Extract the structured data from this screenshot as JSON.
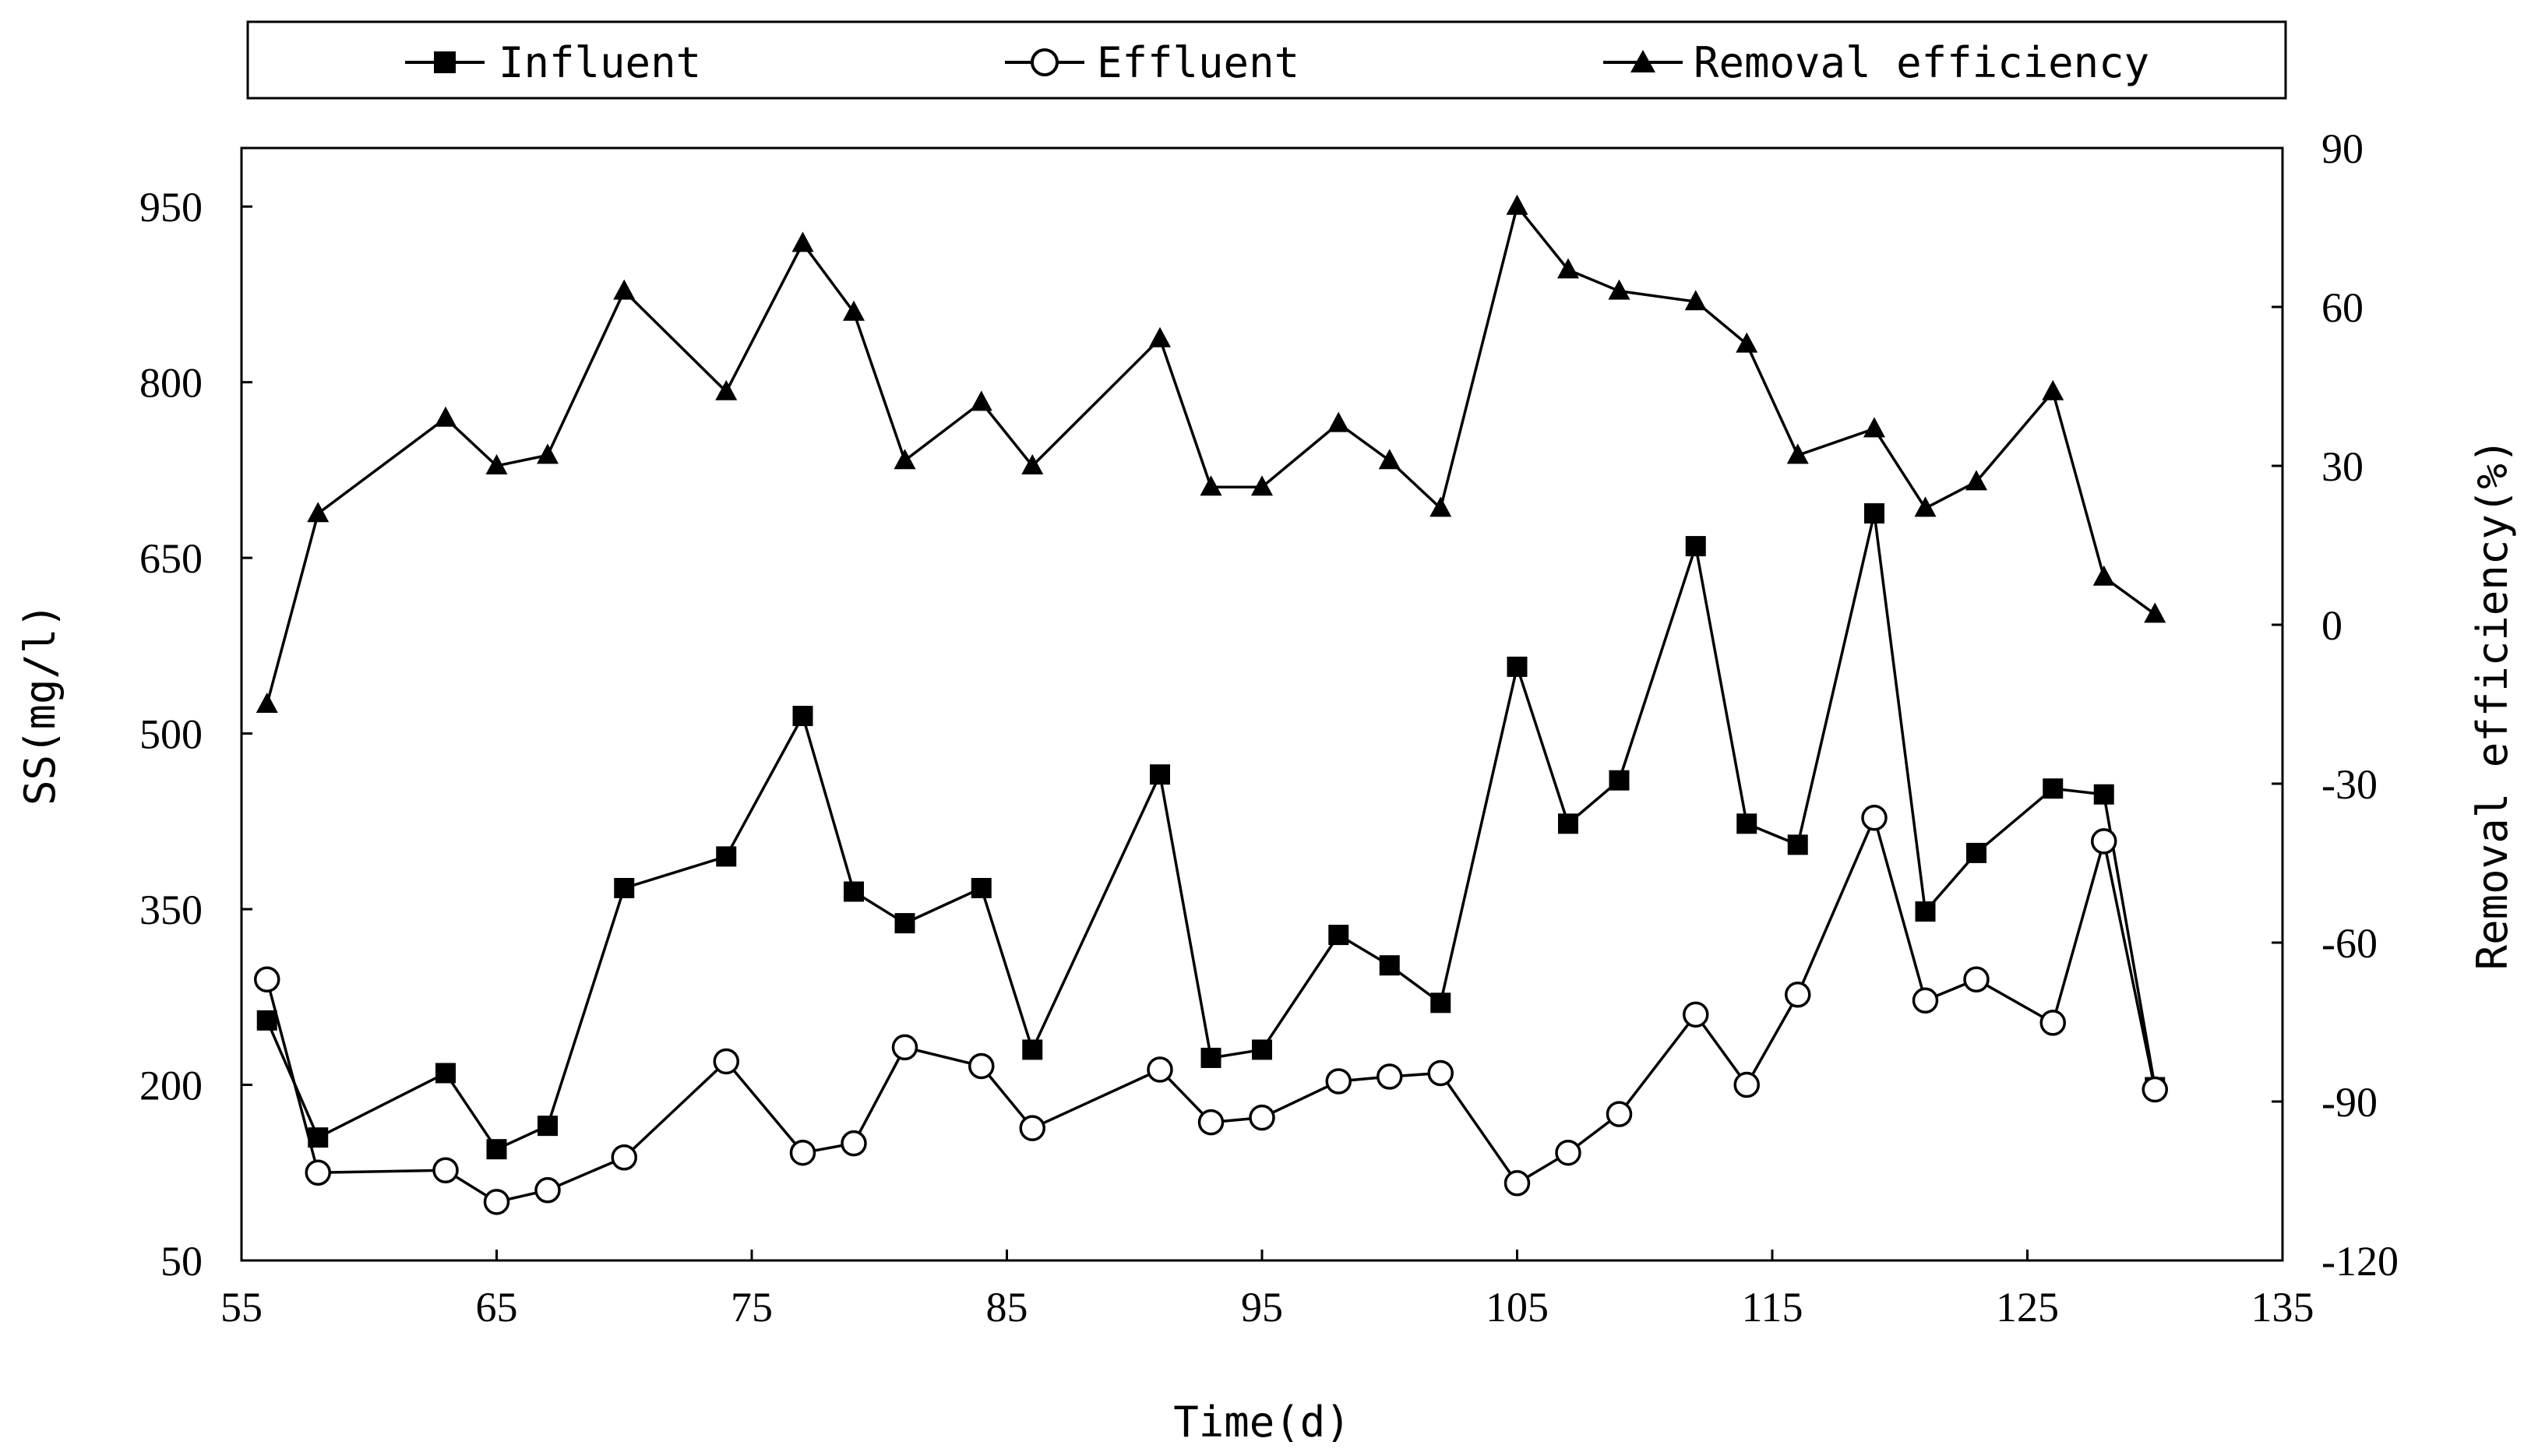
{
  "chart_data": {
    "type": "line",
    "title": "",
    "xlabel": "Time(d)",
    "ylabel": "SS(mg/l)",
    "y2label": "Removal efficiency(%)",
    "xlim": [
      55,
      135
    ],
    "ylim": [
      50,
      1000
    ],
    "y2lim": [
      -120,
      90
    ],
    "xticks": [
      55,
      65,
      75,
      85,
      95,
      105,
      115,
      125,
      135
    ],
    "yticks": [
      50,
      200,
      350,
      500,
      650,
      800,
      950
    ],
    "y2ticks": [
      -120,
      -90,
      -60,
      -30,
      0,
      30,
      60,
      90
    ],
    "grid": false,
    "legend_position": "top, outside plot area",
    "series": [
      {
        "name": "Influent",
        "axis": "left",
        "marker": "filled-square",
        "x": [
          56,
          58,
          63,
          65,
          67,
          70,
          74,
          77,
          79,
          81,
          84,
          86,
          91,
          93,
          95,
          98,
          100,
          102,
          105,
          107,
          109,
          112,
          114,
          116,
          119,
          121,
          123,
          126,
          128,
          130
        ],
        "y": [
          255,
          155,
          210,
          145,
          165,
          368,
          395,
          515,
          365,
          338,
          368,
          230,
          465,
          223,
          230,
          328,
          302,
          270,
          557,
          423,
          460,
          660,
          423,
          405,
          688,
          348,
          398,
          453,
          448,
          198
        ]
      },
      {
        "name": "Effluent",
        "axis": "left",
        "marker": "open-circle",
        "x": [
          56,
          58,
          63,
          65,
          67,
          70,
          74,
          77,
          79,
          81,
          84,
          86,
          91,
          93,
          95,
          98,
          100,
          102,
          105,
          107,
          109,
          112,
          114,
          116,
          119,
          121,
          123,
          126,
          128,
          130
        ],
        "y": [
          290,
          125,
          127,
          100,
          110,
          138,
          220,
          142,
          150,
          232,
          216,
          163,
          213,
          168,
          172,
          203,
          207,
          210,
          116,
          142,
          175,
          260,
          200,
          277,
          428,
          272,
          290,
          253,
          408,
          196
        ]
      },
      {
        "name": "Removal efficiency",
        "axis": "right",
        "marker": "filled-triangle",
        "x": [
          56,
          58,
          63,
          65,
          67,
          70,
          74,
          77,
          79,
          81,
          84,
          86,
          91,
          93,
          95,
          98,
          100,
          102,
          105,
          107,
          109,
          112,
          114,
          116,
          119,
          121,
          123,
          126,
          128,
          130
        ],
        "y": [
          -15,
          21,
          39,
          30,
          32,
          63,
          44,
          72,
          59,
          31,
          42,
          30,
          54,
          26,
          26,
          38,
          31,
          22,
          79,
          67,
          63,
          61,
          53,
          32,
          37,
          22,
          27,
          44,
          9,
          2
        ]
      }
    ]
  }
}
